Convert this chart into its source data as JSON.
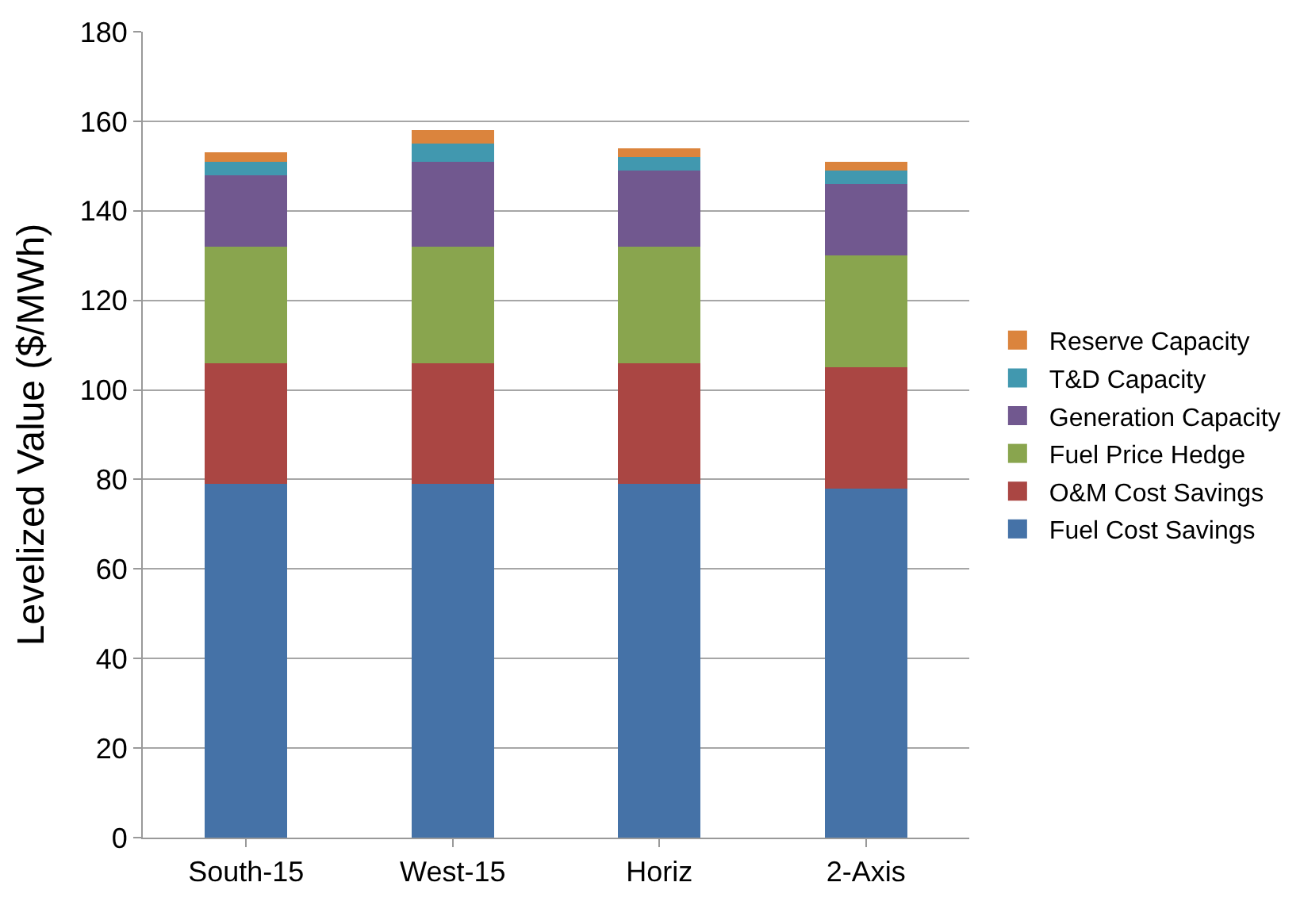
{
  "chart_data": {
    "type": "bar",
    "stacked": true,
    "ylabel": "Levelized Value ($/MWh)",
    "categories": [
      "South-15",
      "West-15",
      "Horiz",
      "2-Axis"
    ],
    "series": [
      {
        "name": "Fuel Cost Savings",
        "color": "#4572a7",
        "values": [
          79,
          79,
          79,
          78
        ]
      },
      {
        "name": "O&M Cost Savings",
        "color": "#aa4643",
        "values": [
          27,
          27,
          27,
          27
        ]
      },
      {
        "name": "Fuel Price Hedge",
        "color": "#89a54e",
        "values": [
          26,
          26,
          26,
          25
        ]
      },
      {
        "name": "Generation Capacity",
        "color": "#71588f",
        "values": [
          16,
          19,
          17,
          16
        ]
      },
      {
        "name": "T&D Capacity",
        "color": "#4198af",
        "values": [
          3,
          4,
          3,
          3
        ]
      },
      {
        "name": "Reserve Capacity",
        "color": "#db843d",
        "values": [
          2,
          3,
          2,
          2
        ]
      }
    ],
    "ylim": [
      0,
      180
    ],
    "yticks": [
      0,
      20,
      40,
      60,
      80,
      100,
      120,
      140,
      160,
      180
    ],
    "grid": "y",
    "legend": "right"
  }
}
